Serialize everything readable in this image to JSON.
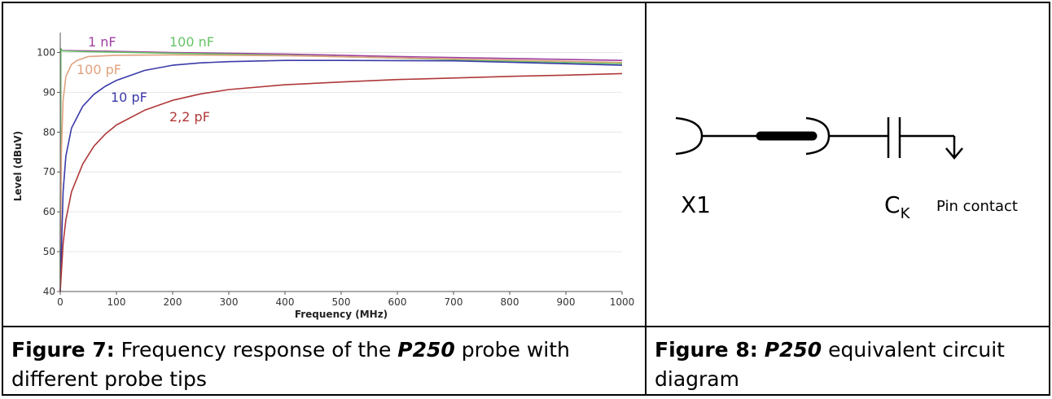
{
  "figure7": {
    "caption": {
      "label": "Figure 7:",
      "text_before": " Frequency response of the ",
      "product": "P250",
      "text_after": " probe with different probe tips"
    },
    "chart_data": {
      "type": "line",
      "xlabel": "Frequency (MHz)",
      "ylabel": "Level (dBuV)",
      "xlim": [
        0,
        1000
      ],
      "ylim": [
        40,
        105
      ],
      "x_ticks": [
        0,
        100,
        200,
        300,
        400,
        500,
        600,
        700,
        800,
        900,
        1000
      ],
      "y_ticks": [
        40,
        50,
        60,
        70,
        80,
        90,
        100
      ],
      "grid": "horizontal",
      "legend": "inline labels",
      "series": [
        {
          "name": "1 nF",
          "color": "#a040a0",
          "x": [
            0,
            1,
            3,
            50,
            200,
            400,
            600,
            800,
            1000
          ],
          "y": [
            40,
            101,
            100.5,
            100.4,
            100,
            99.6,
            99,
            98.5,
            98
          ]
        },
        {
          "name": "100 nF",
          "color": "#66c466",
          "x": [
            0,
            1,
            3,
            50,
            200,
            400,
            600,
            800,
            1000
          ],
          "y": [
            40,
            101,
            100.4,
            100.2,
            99.8,
            99.3,
            98.6,
            97.8,
            97.2
          ]
        },
        {
          "name": "100 pF",
          "color": "#e0a27e",
          "x": [
            0,
            2,
            5,
            10,
            20,
            30,
            50,
            100,
            200,
            400,
            700,
            1000
          ],
          "y": [
            40,
            75,
            88,
            94,
            97,
            98,
            99,
            99.3,
            99.4,
            99.2,
            98.4,
            97.5
          ]
        },
        {
          "name": "10 pF",
          "color": "#3a3aa8",
          "x": [
            0,
            5,
            10,
            20,
            40,
            60,
            80,
            100,
            150,
            200,
            250,
            300,
            400,
            500,
            700,
            1000
          ],
          "y": [
            40,
            65,
            74,
            81,
            86.5,
            89.5,
            91.5,
            93,
            95.5,
            96.8,
            97.4,
            97.7,
            98,
            98,
            97.9,
            96.8
          ]
        },
        {
          "name": "2,2 pF",
          "color": "#b03838",
          "x": [
            0,
            5,
            10,
            20,
            40,
            60,
            80,
            100,
            150,
            200,
            250,
            300,
            400,
            500,
            600,
            700,
            800,
            900,
            1000
          ],
          "y": [
            40,
            52,
            58,
            65,
            72,
            76.5,
            79.5,
            81.8,
            85.5,
            88,
            89.6,
            90.7,
            91.9,
            92.6,
            93.2,
            93.6,
            94,
            94.3,
            94.7
          ]
        }
      ]
    }
  },
  "figure8": {
    "caption": {
      "label": "Figure 8:",
      "product": "P250",
      "text_after": " equivalent circuit diagram"
    },
    "circuit": {
      "connector_label": "X1",
      "capacitor_label_main": "C",
      "capacitor_label_sub": "K",
      "pin_label": "Pin contact"
    }
  }
}
